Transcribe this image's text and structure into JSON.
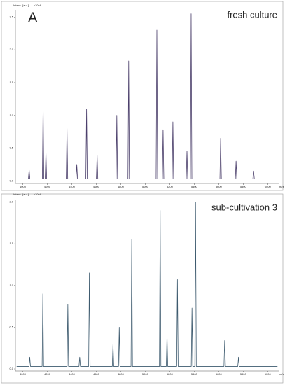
{
  "chart_data": [
    {
      "type": "line",
      "panel_label": "A",
      "title": "fresh culture",
      "y_label": "Intens. [a.u.]",
      "y_multiplier": "x10^4",
      "x_label": "m/z",
      "xlim": [
        3940,
        6090
      ],
      "xticks": [
        4000,
        4200,
        4400,
        4600,
        4800,
        5000,
        5200,
        5400,
        5600,
        5800,
        6000
      ],
      "ylim": [
        -0.04,
        2.6
      ],
      "yticks": [
        {
          "value": 0,
          "label": "0.0"
        },
        0.5,
        {
          "value": 1,
          "label": "1.0"
        },
        1.5,
        {
          "value": 2,
          "label": "2.0"
        },
        2.5
      ],
      "series": [
        {
          "color": "#4b3f6b",
          "x": [
            3950,
            4046,
            4052,
            4058,
            4160,
            4166,
            4172,
            4183,
            4189,
            4195,
            4355,
            4361,
            4367,
            4435,
            4441,
            4447,
            4515,
            4521,
            4527,
            4601,
            4607,
            4613,
            4762,
            4768,
            4774,
            4859,
            4865,
            4871,
            5089,
            5095,
            5101,
            5140,
            5146,
            5152,
            5220,
            5226,
            5232,
            5335,
            5341,
            5347,
            5369,
            5375,
            5381,
            5610,
            5616,
            5622,
            5736,
            5742,
            5748,
            5879,
            5885,
            5891,
            6080
          ],
          "values": [
            0.03,
            0.03,
            0.17,
            0.03,
            0.03,
            1.15,
            0.03,
            0.03,
            0.45,
            0.03,
            0.03,
            0.8,
            0.03,
            0.03,
            0.25,
            0.03,
            0.03,
            1.1,
            0.03,
            0.03,
            0.4,
            0.03,
            0.03,
            1.0,
            0.03,
            0.03,
            1.83,
            0.03,
            0.03,
            2.3,
            0.03,
            0.03,
            0.78,
            0.03,
            0.03,
            0.9,
            0.03,
            0.03,
            0.45,
            0.03,
            0.03,
            2.55,
            0.03,
            0.03,
            0.65,
            0.03,
            0.03,
            0.3,
            0.03,
            0.03,
            0.15,
            0.03,
            0.03
          ]
        }
      ]
    },
    {
      "type": "line",
      "title": "sub-cultivation 3",
      "y_label": "Intens. [a.u.]",
      "y_multiplier": "x10^4",
      "x_label": "m/z",
      "xlim": [
        3940,
        6090
      ],
      "xticks": [
        4000,
        4200,
        4400,
        4600,
        4800,
        5000,
        5200,
        5400,
        5600,
        5800,
        6000
      ],
      "ylim": [
        -0.025,
        2.03
      ],
      "yticks": [
        {
          "value": 0,
          "label": "0.0"
        },
        0.5,
        {
          "value": 1,
          "label": "1.0"
        },
        1.5,
        {
          "value": 2,
          "label": "2.0"
        }
      ],
      "series": [
        {
          "color": "#3d5a6e",
          "x": [
            3950,
            4051,
            4057,
            4063,
            4158,
            4164,
            4170,
            4362,
            4368,
            4374,
            4459,
            4465,
            4471,
            4538,
            4544,
            4550,
            4731,
            4737,
            4743,
            4782,
            4788,
            4794,
            4884,
            4890,
            4896,
            5116,
            5122,
            5128,
            5172,
            5178,
            5184,
            5257,
            5263,
            5269,
            5376,
            5382,
            5388,
            5405,
            5411,
            5417,
            5643,
            5649,
            5655,
            5756,
            5762,
            5768,
            6080
          ],
          "values": [
            0.03,
            0.03,
            0.14,
            0.03,
            0.03,
            0.9,
            0.03,
            0.03,
            0.77,
            0.03,
            0.03,
            0.14,
            0.03,
            0.03,
            1.15,
            0.03,
            0.03,
            0.3,
            0.03,
            0.03,
            0.5,
            0.03,
            0.03,
            1.55,
            0.03,
            0.03,
            1.9,
            0.03,
            0.03,
            0.4,
            0.03,
            0.03,
            1.07,
            0.03,
            0.03,
            0.73,
            0.03,
            0.03,
            2.0,
            0.03,
            0.03,
            0.34,
            0.03,
            0.03,
            0.14,
            0.03,
            0.03
          ]
        }
      ]
    }
  ]
}
